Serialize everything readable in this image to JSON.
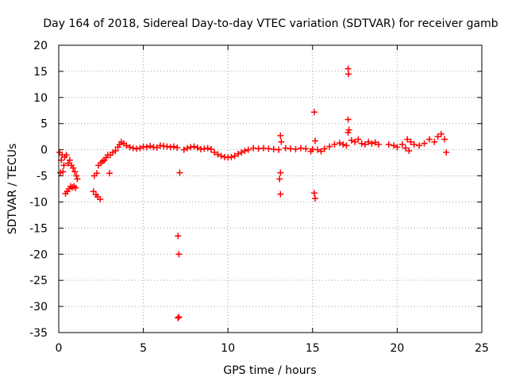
{
  "chart_data": {
    "type": "scatter",
    "title": "Day 164 of 2018, Sidereal Day-to-day VTEC variation (SDTVAR) for receiver gamb",
    "xlabel": "GPS time / hours",
    "ylabel": "SDTVAR / TECUs",
    "xlim": [
      0,
      25
    ],
    "ylim": [
      -35,
      20
    ],
    "xticks": [
      0,
      5,
      10,
      15,
      20,
      25
    ],
    "yticks": [
      20,
      15,
      10,
      5,
      0,
      -5,
      -10,
      -15,
      -20,
      -25,
      -30,
      -35
    ],
    "grid": true,
    "marker": "plus",
    "color": "#ff0000",
    "series": [
      {
        "name": "SDTVAR",
        "points": [
          [
            0.05,
            -0.5
          ],
          [
            0.1,
            -4.4
          ],
          [
            0.15,
            -2.0
          ],
          [
            0.2,
            -1.0
          ],
          [
            0.25,
            -4.2
          ],
          [
            0.3,
            -3.0
          ],
          [
            0.35,
            -1.4
          ],
          [
            0.4,
            -8.4
          ],
          [
            0.45,
            -1.0
          ],
          [
            0.5,
            -8.0
          ],
          [
            0.55,
            -2.6
          ],
          [
            0.6,
            -7.5
          ],
          [
            0.65,
            -2.0
          ],
          [
            0.7,
            -7.0
          ],
          [
            0.75,
            -3.0
          ],
          [
            0.8,
            -7.2
          ],
          [
            0.85,
            -3.5
          ],
          [
            0.9,
            -7.0
          ],
          [
            0.95,
            -4.2
          ],
          [
            1.0,
            -7.3
          ],
          [
            1.05,
            -5.0
          ],
          [
            1.1,
            -5.6
          ],
          [
            2.05,
            -8.0
          ],
          [
            2.1,
            -5.0
          ],
          [
            2.2,
            -8.6
          ],
          [
            2.25,
            -4.5
          ],
          [
            2.3,
            -9.0
          ],
          [
            2.35,
            -3.0
          ],
          [
            2.45,
            -9.5
          ],
          [
            2.5,
            -2.5
          ],
          [
            2.6,
            -2.2
          ],
          [
            2.7,
            -2.0
          ],
          [
            2.8,
            -1.5
          ],
          [
            2.9,
            -1.0
          ],
          [
            3.0,
            -4.5
          ],
          [
            3.05,
            -1.0
          ],
          [
            3.2,
            -0.5
          ],
          [
            3.35,
            -0.2
          ],
          [
            3.5,
            0.5
          ],
          [
            3.6,
            1.0
          ],
          [
            3.7,
            1.5
          ],
          [
            3.85,
            1.2
          ],
          [
            4.0,
            0.8
          ],
          [
            4.2,
            0.5
          ],
          [
            4.4,
            0.3
          ],
          [
            4.6,
            0.2
          ],
          [
            4.8,
            0.3
          ],
          [
            5.0,
            0.6
          ],
          [
            5.2,
            0.5
          ],
          [
            5.4,
            0.7
          ],
          [
            5.6,
            0.5
          ],
          [
            5.8,
            0.4
          ],
          [
            6.0,
            0.8
          ],
          [
            6.2,
            0.7
          ],
          [
            6.4,
            0.6
          ],
          [
            6.6,
            0.5
          ],
          [
            6.8,
            0.6
          ],
          [
            7.0,
            0.4
          ],
          [
            7.05,
            -16.5
          ],
          [
            7.1,
            -20.0
          ],
          [
            7.15,
            -4.4
          ],
          [
            7.1,
            -32.0
          ],
          [
            7.05,
            -32.2
          ],
          [
            7.4,
            0.0
          ],
          [
            7.6,
            0.3
          ],
          [
            7.8,
            0.5
          ],
          [
            8.0,
            0.6
          ],
          [
            8.2,
            0.4
          ],
          [
            8.4,
            0.1
          ],
          [
            8.6,
            0.2
          ],
          [
            8.8,
            0.3
          ],
          [
            9.0,
            0.1
          ],
          [
            9.2,
            -0.5
          ],
          [
            9.4,
            -0.9
          ],
          [
            9.6,
            -1.2
          ],
          [
            9.8,
            -1.4
          ],
          [
            10.0,
            -1.5
          ],
          [
            10.2,
            -1.4
          ],
          [
            10.4,
            -1.2
          ],
          [
            10.6,
            -0.8
          ],
          [
            10.8,
            -0.5
          ],
          [
            11.0,
            -0.2
          ],
          [
            11.2,
            0.0
          ],
          [
            11.5,
            0.3
          ],
          [
            11.8,
            0.2
          ],
          [
            12.1,
            0.3
          ],
          [
            12.4,
            0.2
          ],
          [
            12.7,
            0.1
          ],
          [
            13.0,
            0.0
          ],
          [
            13.1,
            2.7
          ],
          [
            13.15,
            1.5
          ],
          [
            13.1,
            -4.4
          ],
          [
            13.05,
            -5.6
          ],
          [
            13.1,
            -8.5
          ],
          [
            13.4,
            0.3
          ],
          [
            13.7,
            0.2
          ],
          [
            14.0,
            0.1
          ],
          [
            14.3,
            0.3
          ],
          [
            14.6,
            0.2
          ],
          [
            14.9,
            -0.3
          ],
          [
            15.0,
            0.1
          ],
          [
            15.1,
            7.2
          ],
          [
            15.15,
            1.7
          ],
          [
            15.1,
            -8.3
          ],
          [
            15.15,
            -9.3
          ],
          [
            15.3,
            0.0
          ],
          [
            15.5,
            -0.3
          ],
          [
            15.7,
            0.2
          ],
          [
            16.0,
            0.6
          ],
          [
            16.3,
            1.0
          ],
          [
            16.6,
            1.3
          ],
          [
            16.8,
            1.0
          ],
          [
            17.0,
            0.8
          ],
          [
            17.1,
            15.5
          ],
          [
            17.12,
            14.5
          ],
          [
            17.1,
            5.8
          ],
          [
            17.15,
            3.8
          ],
          [
            17.1,
            3.3
          ],
          [
            17.3,
            1.8
          ],
          [
            17.5,
            1.5
          ],
          [
            17.7,
            2.0
          ],
          [
            17.9,
            1.2
          ],
          [
            18.1,
            1.0
          ],
          [
            18.3,
            1.5
          ],
          [
            18.5,
            1.2
          ],
          [
            18.7,
            1.4
          ],
          [
            18.9,
            1.0
          ],
          [
            19.5,
            1.0
          ],
          [
            19.8,
            0.8
          ],
          [
            20.0,
            0.5
          ],
          [
            20.3,
            1.0
          ],
          [
            20.5,
            0.3
          ],
          [
            20.6,
            2.0
          ],
          [
            20.7,
            -0.2
          ],
          [
            20.8,
            1.5
          ],
          [
            21.0,
            1.0
          ],
          [
            21.3,
            0.8
          ],
          [
            21.6,
            1.2
          ],
          [
            21.9,
            2.0
          ],
          [
            22.2,
            1.5
          ],
          [
            22.4,
            2.5
          ],
          [
            22.6,
            3.0
          ],
          [
            22.8,
            2.0
          ],
          [
            22.9,
            -0.5
          ]
        ]
      }
    ]
  }
}
